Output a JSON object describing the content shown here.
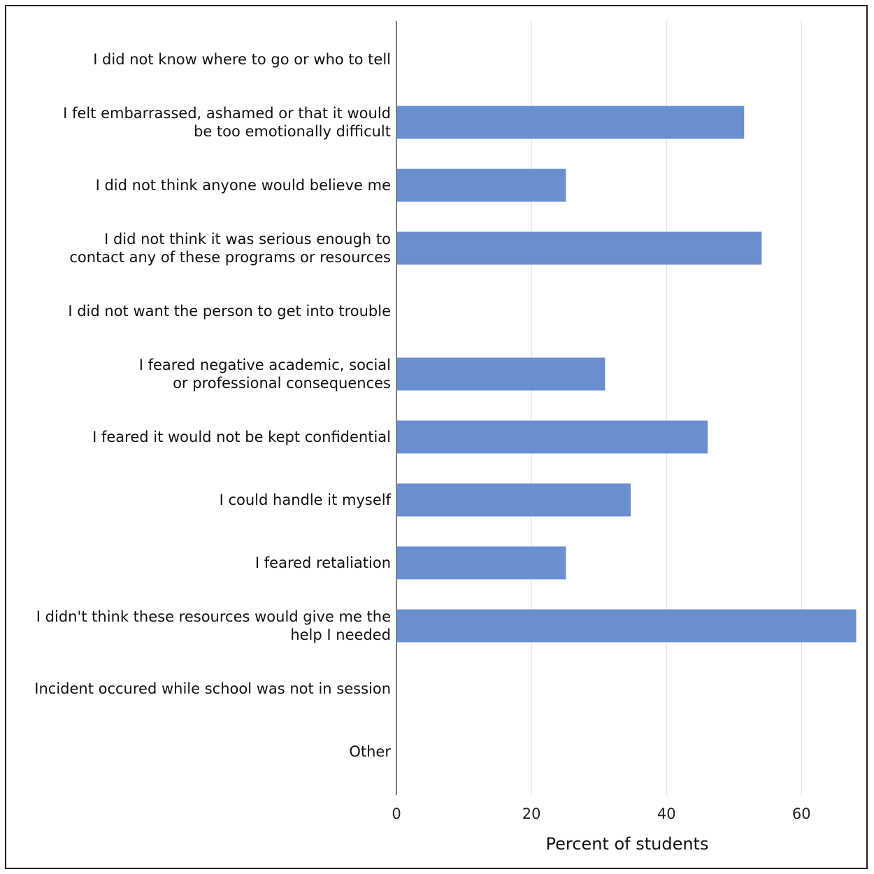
{
  "chart_data": {
    "type": "bar",
    "orientation": "horizontal",
    "title": "",
    "xlabel": "Percent of students",
    "ylabel": "",
    "xlim": [
      0,
      68
    ],
    "xticks": [
      0,
      20,
      40,
      60
    ],
    "grid": true,
    "bar_color": "#6a8fd0",
    "categories": [
      [
        "I did not know where to go or who to tell"
      ],
      [
        "I felt embarrassed, ashamed or that it would",
        "be too emotionally difficult"
      ],
      [
        "I did not think anyone would believe me"
      ],
      [
        "I did not think it was serious enough to",
        "contact any of these programs or resources"
      ],
      [
        "I did not want the person to get into trouble"
      ],
      [
        "I feared negative academic, social",
        "or professional consequences"
      ],
      [
        "I feared it would not be kept confidential"
      ],
      [
        "I could handle it myself"
      ],
      [
        "I feared retaliation"
      ],
      [
        "I didn't think these resources would give me the",
        "help I needed"
      ],
      [
        "Incident occured while school was not in session"
      ],
      [
        "Other"
      ]
    ],
    "values": [
      0,
      51.4,
      25.0,
      54.0,
      0,
      30.8,
      46.0,
      34.6,
      25.0,
      68.0,
      0,
      0
    ]
  }
}
